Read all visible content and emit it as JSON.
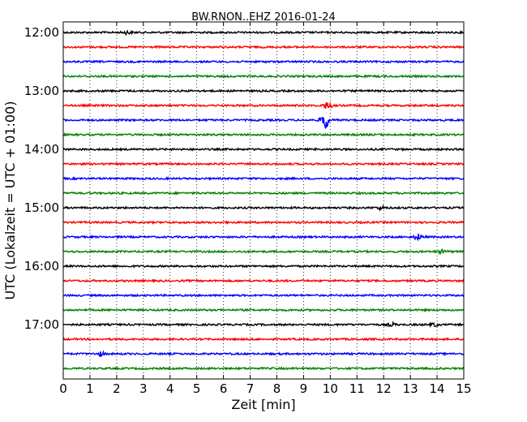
{
  "chart_data": {
    "type": "line",
    "title": "BW.RNON..EHZ 2016-01-24",
    "xlabel": "Zeit  [min]",
    "ylabel": "UTC (Lokalzeit = UTC + 01:00)",
    "xlim": [
      0,
      15
    ],
    "x_ticks": [
      "0",
      "1",
      "2",
      "3",
      "4",
      "5",
      "6",
      "7",
      "8",
      "9",
      "10",
      "11",
      "12",
      "13",
      "14",
      "15"
    ],
    "y_ticks": [
      "12:00",
      "13:00",
      "14:00",
      "15:00",
      "16:00",
      "17:00"
    ],
    "grid": "vertical-dotted",
    "trace_colors": [
      "#000000",
      "#ff0000",
      "#0000ff",
      "#008000"
    ],
    "trace_start_times": [
      "12:00",
      "12:15",
      "12:30",
      "12:45",
      "13:00",
      "13:15",
      "13:30",
      "13:45",
      "14:00",
      "14:15",
      "14:30",
      "14:45",
      "15:00",
      "15:15",
      "15:30",
      "15:45",
      "16:00",
      "16:15",
      "16:30",
      "16:45",
      "17:00",
      "17:15",
      "17:30",
      "17:45"
    ],
    "events": [
      {
        "trace": "13:15",
        "minute": 9.9,
        "amplitude": 0.25
      },
      {
        "trace": "13:30",
        "minute": 9.8,
        "amplitude": 0.6
      },
      {
        "trace": "15:30",
        "minute": 13.3,
        "amplitude": 0.2
      },
      {
        "trace": "15:45",
        "minute": 14.2,
        "amplitude": 0.1
      },
      {
        "trace": "12:00",
        "minute": 2.4,
        "amplitude": 0.1
      },
      {
        "trace": "17:30",
        "minute": 1.4,
        "amplitude": 0.12
      },
      {
        "trace": "15:00",
        "minute": 11.9,
        "amplitude": 0.1
      },
      {
        "trace": "17:00",
        "minute": 12.3,
        "amplitude": 0.1
      },
      {
        "trace": "17:00",
        "minute": 13.9,
        "amplitude": 0.1
      }
    ]
  }
}
